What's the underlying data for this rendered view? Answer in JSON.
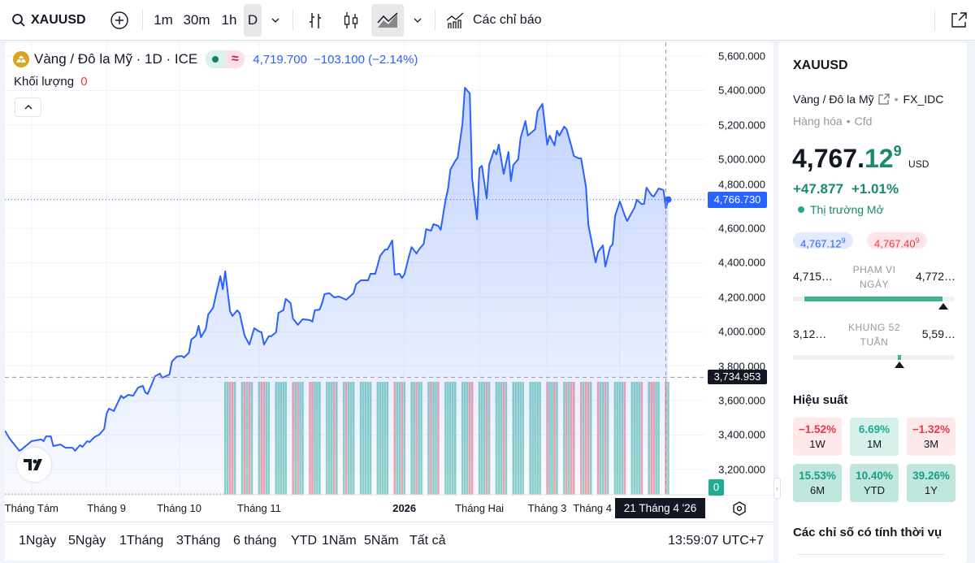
{
  "toolbar": {
    "symbol": "XAUUSD",
    "intervals": [
      "1m",
      "30m",
      "1h",
      "D"
    ],
    "active_interval": "D",
    "chart_types": [
      "bar-chart-icon",
      "candles-icon",
      "area-chart-icon"
    ],
    "active_chart_type": "area-chart-icon",
    "indicators_label": "Các chỉ báo"
  },
  "legend": {
    "title": "Vàng / Đô la Mỹ · 1D · ICE",
    "approx_symbol": "≈",
    "last": "4,719.700",
    "change": "−103.100 (−2.14%)",
    "volume_label": "Khối lượng",
    "volume_value": "0"
  },
  "price_axis": {
    "ticks": [
      "5,600.000",
      "5,400.000",
      "5,200.000",
      "5,000.000",
      "4,800.000",
      "4,600.000",
      "4,400.000",
      "4,200.000",
      "4,000.000",
      "3,800.000",
      "3,600.000",
      "3,400.000",
      "3,200.000"
    ],
    "current_price_label": "4,766.730",
    "crosshair_price_label": "3,734.953",
    "volume_axis_label": "0"
  },
  "time_axis": {
    "ticks": [
      {
        "label": "Tháng Tám",
        "date": "2025-08-01"
      },
      {
        "label": "Tháng 9",
        "date": "2025-09-01"
      },
      {
        "label": "Tháng 10",
        "date": "2025-10-01"
      },
      {
        "label": "Tháng 11",
        "date": "2025-11-03"
      },
      {
        "label": "2026",
        "date": "2026-01-02",
        "bold": true
      },
      {
        "label": "Tháng Hai",
        "date": "2026-02-02"
      },
      {
        "label": "Tháng 3",
        "date": "2026-03-02"
      },
      {
        "label": "Tháng 4",
        "date": "2026-04-01"
      }
    ],
    "crosshair_date_label": "21 Tháng 4 '26"
  },
  "colors": {
    "line": "#2962ff",
    "up_volume": "#8fd3c8",
    "down_volume": "#f3a6ae",
    "positive": "#22ab94",
    "negative": "#f23645"
  },
  "chart_data": {
    "type": "area",
    "ylim": [
      3100,
      5650
    ],
    "current_price": 4766.73,
    "crosshair_price": 3734.953,
    "points": [
      [
        "2025-07-21",
        3425
      ],
      [
        "2025-07-23",
        3378
      ],
      [
        "2025-07-27",
        3308
      ],
      [
        "2025-07-28",
        3317
      ],
      [
        "2025-08-01",
        3364
      ],
      [
        "2025-08-05",
        3374
      ],
      [
        "2025-08-06",
        3364
      ],
      [
        "2025-08-07",
        3392
      ],
      [
        "2025-08-09",
        3392
      ],
      [
        "2025-08-10",
        3336
      ],
      [
        "2025-08-13",
        3345
      ],
      [
        "2025-08-15",
        3326
      ],
      [
        "2025-08-18",
        3326
      ],
      [
        "2025-08-19",
        3308
      ],
      [
        "2025-08-21",
        3341
      ],
      [
        "2025-08-22",
        3331
      ],
      [
        "2025-08-24",
        3364
      ],
      [
        "2025-08-25",
        3359
      ],
      [
        "2025-08-27",
        3388
      ],
      [
        "2025-08-29",
        3402
      ],
      [
        "2025-08-31",
        3435
      ],
      [
        "2025-09-01",
        3524
      ],
      [
        "2025-09-02",
        3553
      ],
      [
        "2025-09-04",
        3539
      ],
      [
        "2025-09-07",
        3628
      ],
      [
        "2025-09-08",
        3614
      ],
      [
        "2025-09-10",
        3633
      ],
      [
        "2025-09-12",
        3628
      ],
      [
        "2025-09-14",
        3675
      ],
      [
        "2025-09-16",
        3685
      ],
      [
        "2025-09-17",
        3647
      ],
      [
        "2025-09-18",
        3638
      ],
      [
        "2025-09-21",
        3741
      ],
      [
        "2025-09-23",
        3756
      ],
      [
        "2025-09-24",
        3732
      ],
      [
        "2025-09-27",
        3751
      ],
      [
        "2025-09-28",
        3826
      ],
      [
        "2025-09-30",
        3855
      ],
      [
        "2025-10-02",
        3859
      ],
      [
        "2025-10-03",
        3850
      ],
      [
        "2025-10-05",
        3878
      ],
      [
        "2025-10-06",
        3954
      ],
      [
        "2025-10-08",
        3977
      ],
      [
        "2025-10-09",
        4034
      ],
      [
        "2025-10-10",
        3968
      ],
      [
        "2025-10-12",
        4015
      ],
      [
        "2025-10-13",
        4100
      ],
      [
        "2025-10-15",
        4138
      ],
      [
        "2025-10-16",
        4204
      ],
      [
        "2025-10-18",
        4322
      ],
      [
        "2025-10-19",
        4246
      ],
      [
        "2025-10-20",
        4350
      ],
      [
        "2025-10-22",
        4119
      ],
      [
        "2025-10-23",
        4091
      ],
      [
        "2025-10-25",
        4124
      ],
      [
        "2025-10-26",
        4105
      ],
      [
        "2025-10-28",
        3977
      ],
      [
        "2025-10-30",
        3925
      ],
      [
        "2025-11-01",
        4020
      ],
      [
        "2025-11-03",
        4001
      ],
      [
        "2025-11-04",
        3996
      ],
      [
        "2025-11-05",
        3925
      ],
      [
        "2025-11-07",
        3973
      ],
      [
        "2025-11-08",
        3973
      ],
      [
        "2025-11-10",
        3996
      ],
      [
        "2025-11-11",
        4109
      ],
      [
        "2025-11-13",
        4124
      ],
      [
        "2025-11-14",
        4190
      ],
      [
        "2025-11-16",
        4166
      ],
      [
        "2025-11-17",
        4076
      ],
      [
        "2025-11-19",
        4039
      ],
      [
        "2025-11-21",
        4072
      ],
      [
        "2025-11-24",
        4067
      ],
      [
        "2025-11-25",
        4058
      ],
      [
        "2025-11-26",
        4124
      ],
      [
        "2025-11-28",
        4128
      ],
      [
        "2025-11-29",
        4166
      ],
      [
        "2025-11-30",
        4218
      ],
      [
        "2025-12-02",
        4223
      ],
      [
        "2025-12-04",
        4199
      ],
      [
        "2025-12-06",
        4204
      ],
      [
        "2025-12-09",
        4185
      ],
      [
        "2025-12-12",
        4223
      ],
      [
        "2025-12-13",
        4274
      ],
      [
        "2025-12-15",
        4298
      ],
      [
        "2025-12-18",
        4298
      ],
      [
        "2025-12-19",
        4336
      ],
      [
        "2025-12-21",
        4336
      ],
      [
        "2025-12-23",
        4440
      ],
      [
        "2025-12-25",
        4477
      ],
      [
        "2025-12-26",
        4477
      ],
      [
        "2025-12-28",
        4529
      ],
      [
        "2025-12-29",
        4331
      ],
      [
        "2025-12-31",
        4336
      ],
      [
        "2026-01-01",
        4312
      ],
      [
        "2026-01-02",
        4331
      ],
      [
        "2026-01-04",
        4444
      ],
      [
        "2026-01-05",
        4491
      ],
      [
        "2026-01-07",
        4454
      ],
      [
        "2026-01-08",
        4477
      ],
      [
        "2026-01-10",
        4510
      ],
      [
        "2026-01-11",
        4595
      ],
      [
        "2026-01-13",
        4586
      ],
      [
        "2026-01-14",
        4624
      ],
      [
        "2026-01-16",
        4614
      ],
      [
        "2026-01-17",
        4591
      ],
      [
        "2026-01-19",
        4765
      ],
      [
        "2026-01-20",
        4826
      ],
      [
        "2026-01-21",
        4940
      ],
      [
        "2026-01-23",
        4991
      ],
      [
        "2026-01-24",
        5010
      ],
      [
        "2026-01-26",
        5208
      ],
      [
        "2026-01-27",
        5416
      ],
      [
        "2026-01-29",
        5383
      ],
      [
        "2026-01-30",
        4888
      ],
      [
        "2026-02-01",
        4652
      ],
      [
        "2026-02-02",
        4949
      ],
      [
        "2026-02-03",
        4963
      ],
      [
        "2026-02-05",
        4774
      ],
      [
        "2026-02-06",
        4968
      ],
      [
        "2026-02-08",
        5053
      ],
      [
        "2026-02-09",
        5029
      ],
      [
        "2026-02-10",
        5086
      ],
      [
        "2026-02-12",
        4916
      ],
      [
        "2026-02-14",
        5043
      ],
      [
        "2026-02-15",
        4874
      ],
      [
        "2026-02-16",
        4968
      ],
      [
        "2026-02-18",
        5001
      ],
      [
        "2026-02-19",
        5124
      ],
      [
        "2026-02-21",
        5223
      ],
      [
        "2026-02-22",
        5138
      ],
      [
        "2026-02-25",
        5175
      ],
      [
        "2026-02-26",
        5279
      ],
      [
        "2026-02-28",
        5322
      ],
      [
        "2026-03-02",
        5086
      ],
      [
        "2026-03-03",
        5138
      ],
      [
        "2026-03-05",
        5081
      ],
      [
        "2026-03-06",
        5166
      ],
      [
        "2026-03-07",
        5138
      ],
      [
        "2026-03-09",
        5190
      ],
      [
        "2026-03-10",
        5175
      ],
      [
        "2026-03-12",
        5076
      ],
      [
        "2026-03-13",
        5020
      ],
      [
        "2026-03-15",
        5006
      ],
      [
        "2026-03-16",
        5006
      ],
      [
        "2026-03-18",
        4841
      ],
      [
        "2026-03-19",
        4619
      ],
      [
        "2026-03-22",
        4402
      ],
      [
        "2026-03-23",
        4463
      ],
      [
        "2026-03-25",
        4501
      ],
      [
        "2026-03-26",
        4378
      ],
      [
        "2026-03-28",
        4491
      ],
      [
        "2026-03-29",
        4506
      ],
      [
        "2026-03-30",
        4671
      ],
      [
        "2026-04-01",
        4756
      ],
      [
        "2026-04-03",
        4675
      ],
      [
        "2026-04-04",
        4642
      ],
      [
        "2026-04-06",
        4694
      ],
      [
        "2026-04-07",
        4718
      ],
      [
        "2026-04-08",
        4765
      ],
      [
        "2026-04-10",
        4741
      ],
      [
        "2026-04-11",
        4741
      ],
      [
        "2026-04-12",
        4836
      ],
      [
        "2026-04-14",
        4793
      ],
      [
        "2026-04-15",
        4784
      ],
      [
        "2026-04-17",
        4831
      ],
      [
        "2026-04-19",
        4822
      ],
      [
        "2026-04-20",
        4718
      ],
      [
        "2026-04-21",
        4767
      ]
    ],
    "volume_start": "2025-10-20",
    "grid": true
  },
  "bottom": {
    "ranges": [
      "1Ngày",
      "5Ngày",
      "1Tháng",
      "3Tháng",
      "6 tháng",
      "YTD",
      "1Năm",
      "5Năm",
      "Tất cả"
    ],
    "clock": "13:59:07 UTC+7"
  },
  "panel": {
    "symbol": "XAUUSD",
    "name": "Vàng / Đô la Mỹ",
    "exchange": "FX_IDC",
    "category": "Hàng hóa",
    "type": "Cfd",
    "price_main": "4,767.",
    "price_frac": "12",
    "price_sup": "9",
    "currency": "USD",
    "change": "+47.877",
    "change_pct": "+1.01%",
    "market_status": "Thị trường Mở",
    "bid": "4,767.12",
    "bid_sup": "9",
    "ask": "4,767.40",
    "ask_sup": "9",
    "day_range": {
      "low": "4,715…",
      "label": "PHẠM VI NGÀY",
      "high": "4,772…",
      "position": 0.92
    },
    "week52_range": {
      "low": "3,12…",
      "label": "KHUNG 52 TUẦN",
      "high": "5,59…",
      "position": 0.66
    },
    "performance_title": "Hiệu suất",
    "performance": [
      {
        "value": "−1.52%",
        "label": "1W",
        "sign": "neg"
      },
      {
        "value": "6.69%",
        "label": "1M",
        "sign": "pos"
      },
      {
        "value": "−1.32%",
        "label": "3M",
        "sign": "neg"
      },
      {
        "value": "15.53%",
        "label": "6M",
        "sign": "pos2"
      },
      {
        "value": "10.40%",
        "label": "YTD",
        "sign": "pos2"
      },
      {
        "value": "39.26%",
        "label": "1Y",
        "sign": "pos2"
      }
    ],
    "seasonal_title": "Các chỉ số có tính thời vụ"
  }
}
